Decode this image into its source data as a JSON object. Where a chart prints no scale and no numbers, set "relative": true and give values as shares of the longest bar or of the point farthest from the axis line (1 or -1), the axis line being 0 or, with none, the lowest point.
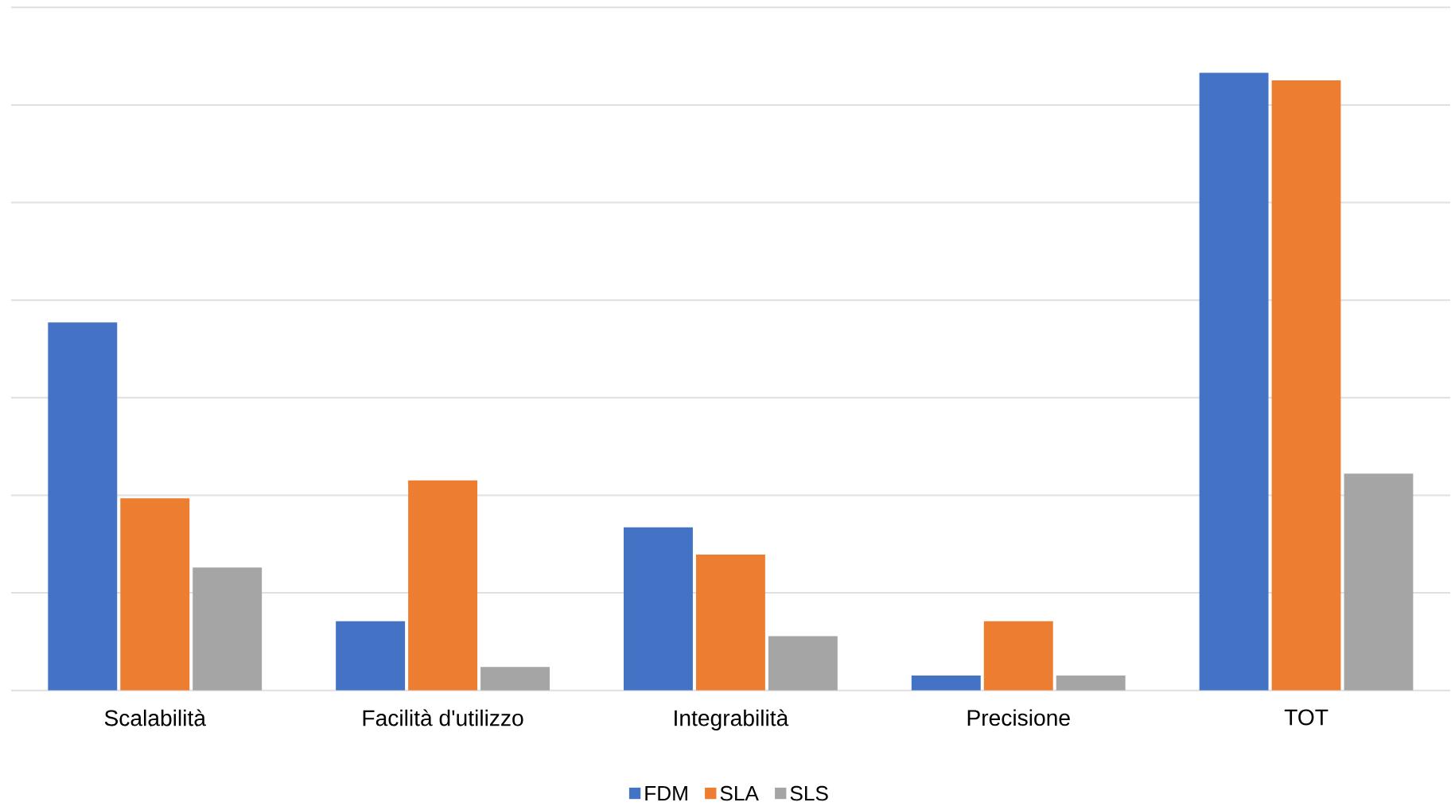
{
  "chart_data": {
    "type": "bar",
    "relative": true,
    "grid": "y",
    "legend": "bottom",
    "categories": [
      "Scalabilità",
      "Facilità d'utilizzo",
      "Integrabilità",
      "Precisione",
      "TOT"
    ],
    "series": [
      {
        "name": "FDM",
        "color": "#4472c4",
        "values": [
          0.596,
          0.112,
          0.264,
          0.024,
          1
        ]
      },
      {
        "name": "SLA",
        "color": "#ed7d31",
        "values": [
          0.311,
          0.34,
          0.22,
          0.112,
          0.988
        ]
      },
      {
        "name": "SLS",
        "color": "#a5a5a5",
        "values": [
          0.199,
          0.038,
          0.088,
          0.024,
          0.351
        ]
      }
    ]
  }
}
